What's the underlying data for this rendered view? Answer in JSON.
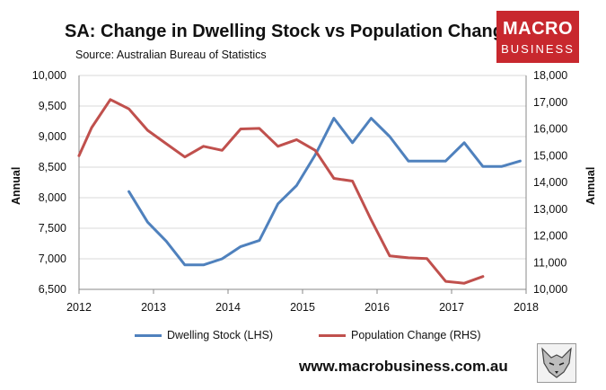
{
  "header": {
    "title": "SA: Change in Dwelling Stock vs Population Change",
    "source": "Source: Australian Bureau of Statistics"
  },
  "logo": {
    "line1": "MACRO",
    "line2": "BUSINESS",
    "color": "#c8282e"
  },
  "footer": {
    "website": "www.macrobusiness.com.au"
  },
  "colors": {
    "dwelling": "#4f81bd",
    "population": "#c0504d",
    "grid": "#d9d9d9"
  },
  "chart_data": {
    "type": "line",
    "title": "SA: Change in Dwelling Stock vs Population Change",
    "xlabel": "",
    "xlim": [
      2012,
      2018
    ],
    "x_ticks": [
      "2012",
      "2013",
      "2014",
      "2015",
      "2016",
      "2017",
      "2018"
    ],
    "y_left": {
      "label": "Annual",
      "lim": [
        6500,
        10000
      ],
      "ticks": [
        "6,500",
        "7,000",
        "7,500",
        "8,000",
        "8,500",
        "9,000",
        "9,500",
        "10,000"
      ]
    },
    "y_right": {
      "label": "Annual",
      "lim": [
        10000,
        18000
      ],
      "ticks": [
        "10,000",
        "11,000",
        "12,000",
        "13,000",
        "14,000",
        "15,000",
        "16,000",
        "17,000",
        "18,000"
      ]
    },
    "grid": true,
    "legend_position": "bottom",
    "series": [
      {
        "name": "Dwelling Stock (LHS)",
        "axis": "left",
        "x": [
          2012.67,
          2012.92,
          2013.17,
          2013.42,
          2013.67,
          2013.92,
          2014.17,
          2014.42,
          2014.67,
          2014.92,
          2015.17,
          2015.42,
          2015.67,
          2015.92,
          2016.17,
          2016.42,
          2016.67,
          2016.92,
          2017.17,
          2017.42,
          2017.67,
          2017.92
        ],
        "values": [
          8100,
          7600,
          7290,
          6900,
          6900,
          7000,
          7200,
          7300,
          7900,
          8200,
          8700,
          9300,
          8900,
          9300,
          9000,
          8600,
          8600,
          8600,
          8900,
          8510,
          8510,
          8600
        ]
      },
      {
        "name": "Population Change (RHS)",
        "axis": "right",
        "x": [
          2012.0,
          2012.17,
          2012.42,
          2012.67,
          2012.92,
          2013.17,
          2013.42,
          2013.67,
          2013.92,
          2014.17,
          2014.42,
          2014.67,
          2014.92,
          2015.17,
          2015.42,
          2015.67,
          2015.92,
          2016.17,
          2016.42,
          2016.67,
          2016.92,
          2017.17,
          2017.42
        ],
        "values": [
          15000,
          16050,
          17100,
          16750,
          15950,
          15450,
          14950,
          15350,
          15200,
          16000,
          16020,
          15350,
          15600,
          15200,
          14150,
          14050,
          12600,
          11250,
          11180,
          11150,
          10300,
          10230,
          10480
        ]
      }
    ]
  }
}
